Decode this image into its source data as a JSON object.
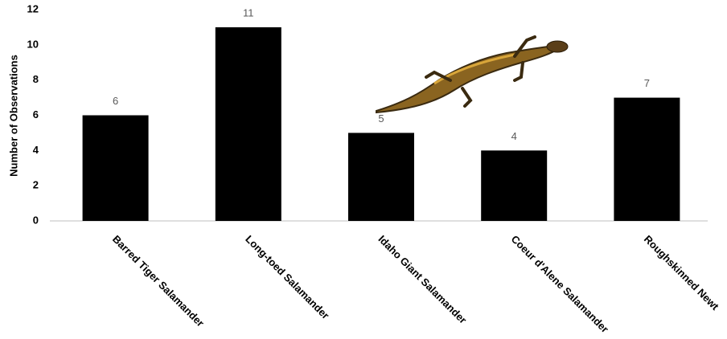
{
  "chart_data": {
    "type": "bar",
    "y_label": "Number of Observations",
    "categories": [
      "Barred Tiger Salamander",
      "Long-toed Salamander",
      "Idaho Giant Salamander",
      "Coeur d'Alene Salamander",
      "Roughskinned Newt"
    ],
    "values": [
      6,
      11,
      5,
      4,
      7
    ],
    "color": "#000000",
    "ylim": [
      0,
      12
    ],
    "yticks": [
      0,
      2,
      4,
      6,
      8,
      10,
      12
    ],
    "grid": false
  }
}
